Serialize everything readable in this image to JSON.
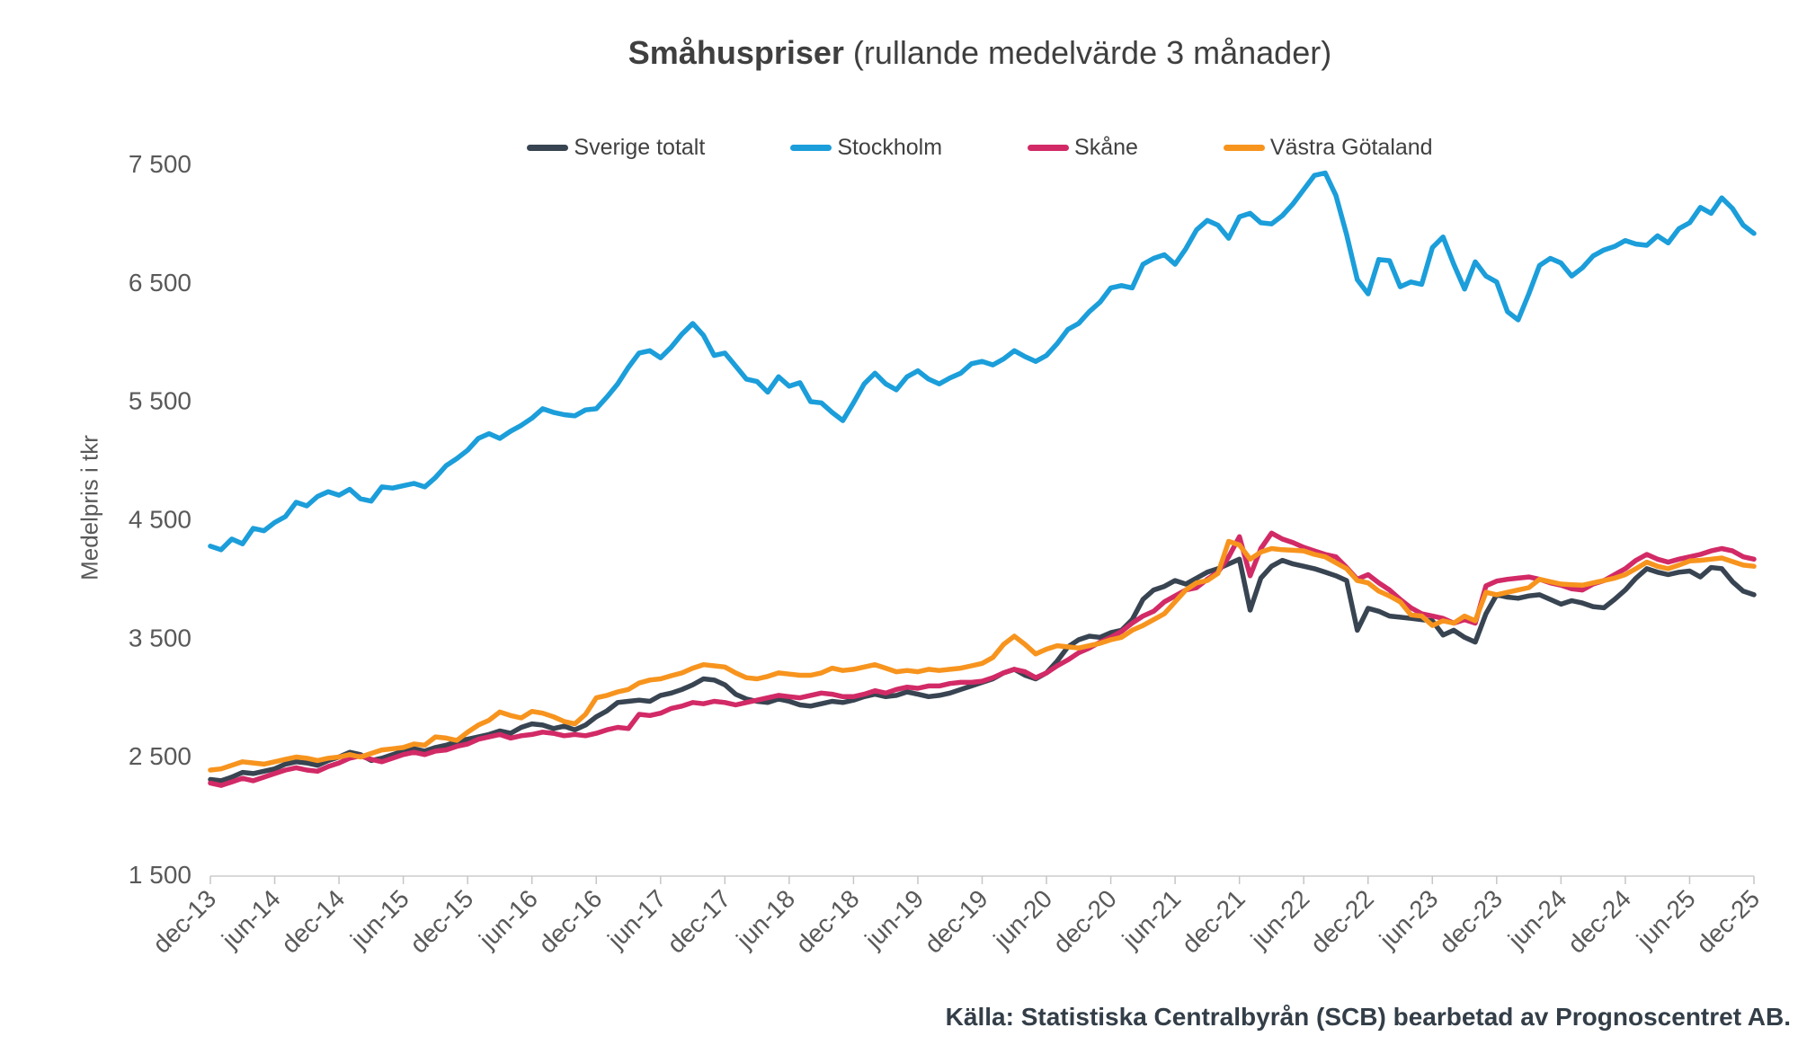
{
  "title": {
    "main": "Småhuspriser",
    "subtitle": "(rullande medelvärde 3 månader)"
  },
  "y_axis": {
    "label": "Medelpris i tkr"
  },
  "footer": {
    "source": "Källa: Statistiska Centralbyrån (SCB) bearbetad av Prognoscentret AB."
  },
  "colors": {
    "sverige_totalt": "#384451",
    "stockholm": "#1b9eda",
    "skane": "#d22a66",
    "vastra_gotaland": "#f7941e",
    "axis_line": "#d9d9d9",
    "tick_mark": "#c6c6c6",
    "tick_text": "#595959",
    "title_text": "#3f3f3f",
    "footer_text": "#333e48"
  },
  "legend": [
    {
      "label": "Sverige totalt",
      "color": "#384451"
    },
    {
      "label": "Stockholm",
      "color": "#1b9eda"
    },
    {
      "label": "Skåne",
      "color": "#d22a66"
    },
    {
      "label": "Västra Götaland",
      "color": "#f7941e"
    }
  ],
  "chart_data": {
    "type": "line",
    "title": "Småhuspriser (rullande medelvärde 3 månader)",
    "xlabel": "",
    "ylabel": "Medelpris i tkr",
    "ylim": [
      1500,
      7500
    ],
    "y_tick_step": 1000,
    "y_tick_labels": [
      "1 500",
      "2 500",
      "3 500",
      "4 500",
      "5 500",
      "6 500",
      "7 500"
    ],
    "x_start": "dec-13",
    "x_end": "dec-25",
    "x_frequency": "monthly",
    "points_per_series": 145,
    "x_tick_every": 6,
    "x_tick_labels": [
      "dec-13",
      "jun-14",
      "dec-14",
      "jun-15",
      "dec-15",
      "jun-16",
      "dec-16",
      "jun-17",
      "dec-17",
      "jun-18",
      "dec-18",
      "jun-19",
      "dec-19",
      "jun-20",
      "dec-20",
      "jun-21",
      "dec-21",
      "jun-22",
      "dec-22",
      "jun-23",
      "dec-23",
      "jun-24",
      "dec-24",
      "jun-25",
      "dec-25"
    ],
    "grid": false,
    "legend_position": "top",
    "series": [
      {
        "name": "Sverige totalt",
        "id": "sverige-totalt",
        "color": "#384451",
        "values": [
          2300,
          2290,
          2320,
          2360,
          2350,
          2370,
          2390,
          2430,
          2450,
          2440,
          2420,
          2460,
          2490,
          2530,
          2510,
          2460,
          2480,
          2510,
          2540,
          2560,
          2540,
          2570,
          2590,
          2620,
          2640,
          2660,
          2680,
          2710,
          2690,
          2740,
          2770,
          2760,
          2730,
          2750,
          2720,
          2760,
          2830,
          2880,
          2950,
          2960,
          2970,
          2960,
          3010,
          3030,
          3060,
          3100,
          3150,
          3140,
          3100,
          3020,
          2980,
          2960,
          2950,
          2980,
          2960,
          2930,
          2920,
          2940,
          2960,
          2950,
          2970,
          3000,
          3020,
          3000,
          3010,
          3040,
          3020,
          3000,
          3010,
          3030,
          3060,
          3090,
          3120,
          3150,
          3200,
          3230,
          3180,
          3150,
          3200,
          3300,
          3420,
          3480,
          3510,
          3500,
          3540,
          3560,
          3650,
          3820,
          3900,
          3930,
          3980,
          3950,
          4000,
          4050,
          4080,
          4120,
          4160,
          3730,
          4000,
          4100,
          4150,
          4120,
          4100,
          4080,
          4050,
          4020,
          3980,
          3560,
          3745,
          3720,
          3680,
          3670,
          3660,
          3650,
          3640,
          3520,
          3560,
          3500,
          3460,
          3700,
          3860,
          3840,
          3830,
          3850,
          3860,
          3820,
          3780,
          3810,
          3790,
          3760,
          3750,
          3820,
          3900,
          4000,
          4080,
          4050,
          4030,
          4050,
          4060,
          4010,
          4090,
          4080,
          3970,
          3890,
          3860
        ]
      },
      {
        "name": "Stockholm",
        "id": "stockholm",
        "color": "#1b9eda",
        "values": [
          4270,
          4240,
          4330,
          4290,
          4420,
          4400,
          4470,
          4520,
          4640,
          4610,
          4690,
          4730,
          4700,
          4750,
          4670,
          4650,
          4770,
          4760,
          4780,
          4800,
          4770,
          4850,
          4950,
          5010,
          5080,
          5180,
          5220,
          5180,
          5240,
          5290,
          5350,
          5430,
          5400,
          5380,
          5370,
          5420,
          5430,
          5530,
          5640,
          5780,
          5900,
          5920,
          5860,
          5950,
          6060,
          6150,
          6050,
          5880,
          5900,
          5790,
          5680,
          5660,
          5570,
          5700,
          5620,
          5650,
          5490,
          5480,
          5400,
          5330,
          5480,
          5640,
          5730,
          5640,
          5590,
          5700,
          5750,
          5680,
          5640,
          5690,
          5730,
          5810,
          5830,
          5800,
          5850,
          5920,
          5870,
          5830,
          5880,
          5980,
          6100,
          6150,
          6250,
          6330,
          6450,
          6470,
          6450,
          6650,
          6700,
          6730,
          6650,
          6780,
          6940,
          7020,
          6980,
          6870,
          7050,
          7080,
          7000,
          6990,
          7060,
          7160,
          7280,
          7400,
          7420,
          7230,
          6900,
          6520,
          6400,
          6690,
          6680,
          6460,
          6500,
          6480,
          6790,
          6880,
          6650,
          6440,
          6670,
          6550,
          6500,
          6250,
          6180,
          6400,
          6640,
          6700,
          6660,
          6550,
          6620,
          6720,
          6770,
          6800,
          6850,
          6820,
          6810,
          6890,
          6830,
          6950,
          7000,
          7130,
          7080,
          7210,
          7120,
          6980,
          6910
        ]
      },
      {
        "name": "Skåne",
        "id": "skane",
        "color": "#d22a66",
        "values": [
          2270,
          2250,
          2280,
          2310,
          2290,
          2320,
          2350,
          2380,
          2400,
          2380,
          2370,
          2410,
          2440,
          2480,
          2500,
          2470,
          2450,
          2480,
          2510,
          2530,
          2510,
          2540,
          2550,
          2580,
          2600,
          2640,
          2660,
          2680,
          2650,
          2670,
          2680,
          2700,
          2690,
          2670,
          2680,
          2670,
          2690,
          2720,
          2740,
          2730,
          2850,
          2840,
          2860,
          2900,
          2920,
          2950,
          2940,
          2960,
          2950,
          2930,
          2950,
          2970,
          2990,
          3010,
          3000,
          2990,
          3010,
          3030,
          3020,
          3000,
          3000,
          3020,
          3050,
          3030,
          3060,
          3080,
          3070,
          3090,
          3090,
          3110,
          3120,
          3120,
          3130,
          3160,
          3200,
          3230,
          3210,
          3160,
          3200,
          3260,
          3310,
          3370,
          3410,
          3460,
          3500,
          3550,
          3620,
          3680,
          3720,
          3800,
          3850,
          3900,
          3920,
          3990,
          4050,
          4180,
          4350,
          4020,
          4250,
          4380,
          4330,
          4300,
          4260,
          4230,
          4200,
          4180,
          4090,
          3990,
          4030,
          3960,
          3900,
          3820,
          3750,
          3700,
          3680,
          3660,
          3620,
          3650,
          3620,
          3935,
          3975,
          3990,
          4000,
          4010,
          3990,
          3960,
          3940,
          3910,
          3900,
          3950,
          3980,
          4030,
          4080,
          4150,
          4200,
          4160,
          4135,
          4160,
          4180,
          4200,
          4230,
          4250,
          4230,
          4180,
          4160
        ]
      },
      {
        "name": "Västra Götaland",
        "id": "vastra-gotaland",
        "color": "#f7941e",
        "values": [
          2380,
          2390,
          2420,
          2450,
          2440,
          2430,
          2450,
          2470,
          2490,
          2480,
          2460,
          2480,
          2490,
          2510,
          2490,
          2520,
          2550,
          2560,
          2570,
          2600,
          2590,
          2660,
          2650,
          2630,
          2700,
          2760,
          2800,
          2870,
          2840,
          2820,
          2875,
          2860,
          2830,
          2790,
          2770,
          2850,
          2990,
          3010,
          3040,
          3060,
          3115,
          3140,
          3150,
          3176,
          3200,
          3240,
          3270,
          3260,
          3250,
          3200,
          3160,
          3150,
          3170,
          3200,
          3190,
          3180,
          3180,
          3200,
          3240,
          3220,
          3230,
          3250,
          3270,
          3240,
          3210,
          3220,
          3210,
          3230,
          3220,
          3230,
          3240,
          3260,
          3280,
          3330,
          3440,
          3510,
          3440,
          3360,
          3400,
          3430,
          3420,
          3410,
          3430,
          3450,
          3480,
          3500,
          3560,
          3600,
          3650,
          3700,
          3800,
          3900,
          3960,
          3980,
          4040,
          4310,
          4280,
          4160,
          4220,
          4250,
          4240,
          4235,
          4230,
          4200,
          4180,
          4130,
          4080,
          3980,
          3960,
          3890,
          3850,
          3800,
          3690,
          3680,
          3600,
          3640,
          3620,
          3680,
          3640,
          3880,
          3860,
          3880,
          3900,
          3920,
          3990,
          3970,
          3950,
          3945,
          3940,
          3960,
          3980,
          4000,
          4030,
          4080,
          4135,
          4100,
          4080,
          4110,
          4145,
          4150,
          4160,
          4170,
          4140,
          4110,
          4100
        ]
      }
    ]
  }
}
